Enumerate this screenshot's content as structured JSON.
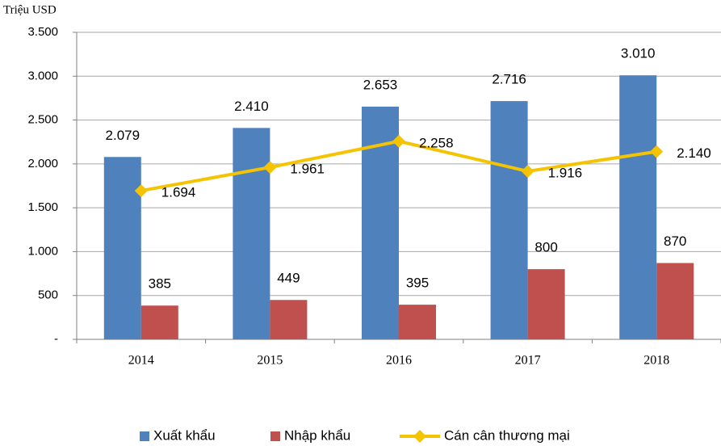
{
  "chart_data": {
    "type": "bar",
    "y_label": "Triệu USD",
    "categories": [
      "2014",
      "2015",
      "2016",
      "2017",
      "2018"
    ],
    "series": [
      {
        "name": "Xuất khẩu",
        "type": "bar",
        "color": "#4f81bd",
        "values": [
          2079,
          2410,
          2653,
          2716,
          3010
        ],
        "value_labels": [
          "2.079",
          "2.410",
          "2.653",
          "2.716",
          "3.010"
        ]
      },
      {
        "name": "Nhập khẩu",
        "type": "bar",
        "color": "#c0504d",
        "values": [
          385,
          449,
          395,
          800,
          870
        ],
        "value_labels": [
          "385",
          "449",
          "395",
          "800",
          "870"
        ]
      },
      {
        "name": "Cán cân thương mại",
        "type": "line",
        "color": "#f5c400",
        "values": [
          1694,
          1961,
          2258,
          1916,
          2140
        ],
        "value_labels": [
          "1.694",
          "1.961",
          "2.258",
          "1.916",
          "2.140"
        ]
      }
    ],
    "ylim": [
      0,
      3500
    ],
    "yticks": [
      {
        "value": 0,
        "label": "-"
      },
      {
        "value": 500,
        "label": "500"
      },
      {
        "value": 1000,
        "label": "1.000"
      },
      {
        "value": 1500,
        "label": "1.500"
      },
      {
        "value": 2000,
        "label": "2.000"
      },
      {
        "value": 2500,
        "label": "2.500"
      },
      {
        "value": 3000,
        "label": "3.000"
      },
      {
        "value": 3500,
        "label": "3.500"
      }
    ],
    "grid": true,
    "legend": "bottom"
  }
}
